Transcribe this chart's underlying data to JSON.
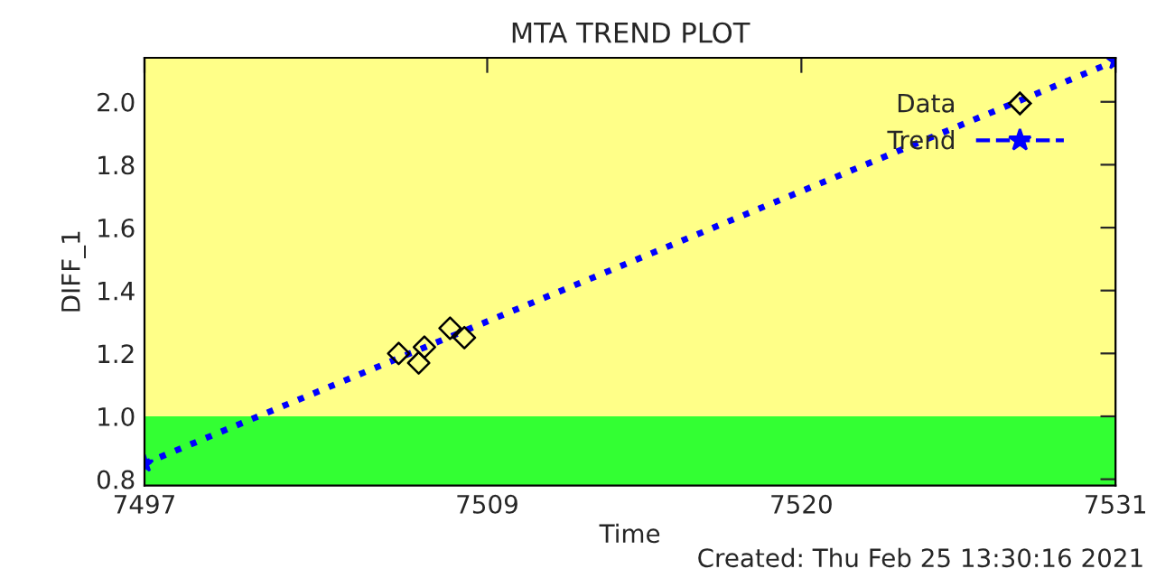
{
  "chart_data": {
    "type": "scatter",
    "title": "MTA TREND PLOT",
    "xlabel": "Time",
    "ylabel": "DIFF_1",
    "xlim": [
      7497,
      7531
    ],
    "xticks": [
      7497,
      7509,
      7520,
      7531
    ],
    "ylim": [
      0.78,
      2.14
    ],
    "yticks": [
      0.8,
      {
        "value": 1,
        "label": "1.0"
      },
      1.2,
      1.4,
      1.6,
      1.8,
      {
        "value": 2,
        "label": "2.0"
      }
    ],
    "series": [
      {
        "name": "Data",
        "marker": "diamond",
        "color": "#000000",
        "x": [
          7505.9,
          7506.6,
          7506.8,
          7507.7,
          7508.2
        ],
        "values": [
          1.2,
          1.17,
          1.22,
          1.28,
          1.25
        ]
      },
      {
        "name": "Trend",
        "type": "line",
        "marker": "star",
        "line_style": "dashed",
        "color": "#0000ff",
        "x": [
          7497,
          7531
        ],
        "values": [
          0.85,
          2.13
        ]
      }
    ],
    "bands": [
      {
        "axis": "y",
        "from": 0.78,
        "to": 1.0,
        "color": "#33ff33"
      },
      {
        "axis": "y",
        "from": 1.0,
        "to": 2.14,
        "color": "#ffff88"
      }
    ],
    "legend": "top right",
    "grid": false,
    "annotations": [
      "Created: Thu Feb 25 13:30:16 2021"
    ]
  }
}
